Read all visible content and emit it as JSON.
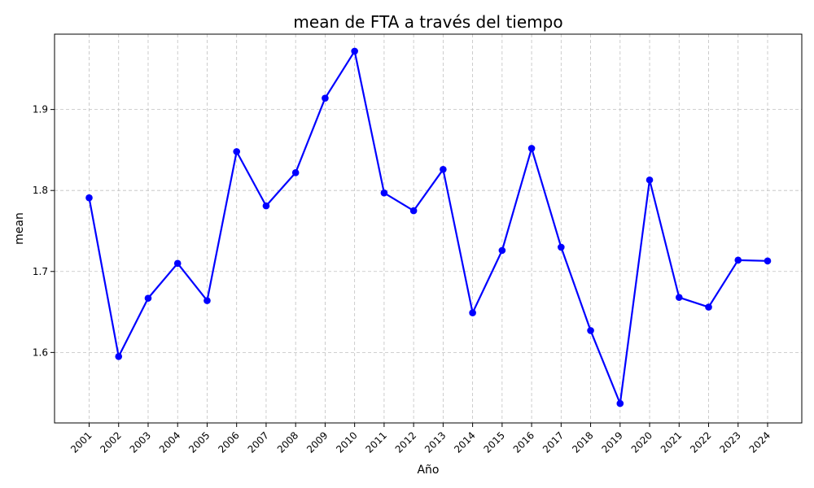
{
  "chart_data": {
    "type": "line",
    "title": "mean de FTA a través del tiempo",
    "xlabel": "Año",
    "ylabel": "mean",
    "categories": [
      "2001",
      "2002",
      "2003",
      "2004",
      "2005",
      "2006",
      "2007",
      "2008",
      "2009",
      "2010",
      "2011",
      "2012",
      "2013",
      "2014",
      "2015",
      "2016",
      "2017",
      "2018",
      "2019",
      "2020",
      "2021",
      "2022",
      "2023",
      "2024"
    ],
    "series": [
      {
        "values": [
          1.791,
          1.595,
          1.667,
          1.71,
          1.664,
          1.848,
          1.781,
          1.822,
          1.914,
          1.972,
          1.797,
          1.775,
          1.826,
          1.649,
          1.726,
          1.852,
          1.73,
          1.627,
          1.537,
          1.813,
          1.668,
          1.656,
          1.714,
          1.713
        ],
        "color": "#0000ff"
      }
    ],
    "ylim": [
      1.513,
      1.993
    ],
    "yticks": [
      1.6,
      1.7,
      1.8,
      1.9
    ],
    "ytick_labels": [
      "1.6",
      "1.7",
      "1.8",
      "1.9"
    ],
    "grid": true,
    "grid_color": "#c0c0c0",
    "line_color": "#0000ff",
    "marker": "circle"
  }
}
